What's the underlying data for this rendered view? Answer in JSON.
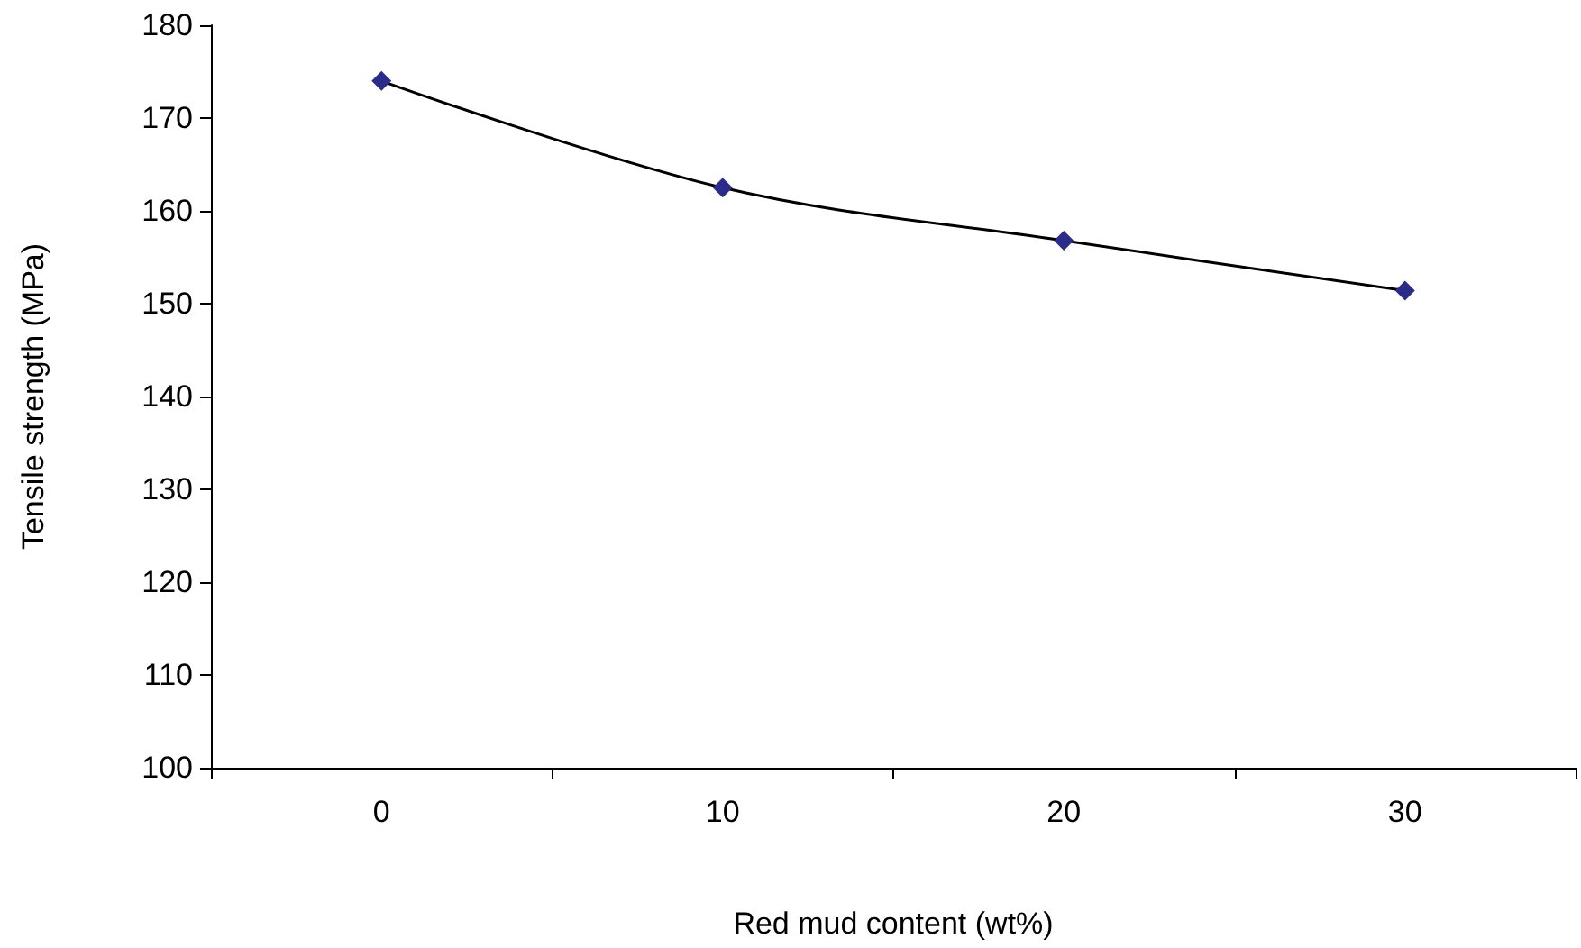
{
  "chart_data": {
    "type": "line",
    "xlabel": "Red mud content (wt%)",
    "ylabel": "Tensile strength (MPa)",
    "categories": [
      "0",
      "10",
      "20",
      "30"
    ],
    "series": [
      {
        "color": "#2b2b8c",
        "values": [
          174,
          162.5,
          156.8,
          151.4
        ]
      }
    ],
    "ylim": [
      100,
      180
    ],
    "yticks": [
      100,
      110,
      120,
      130,
      140,
      150,
      160,
      170,
      180
    ],
    "grid": false,
    "marker": "diamond",
    "line_style": "solid"
  }
}
